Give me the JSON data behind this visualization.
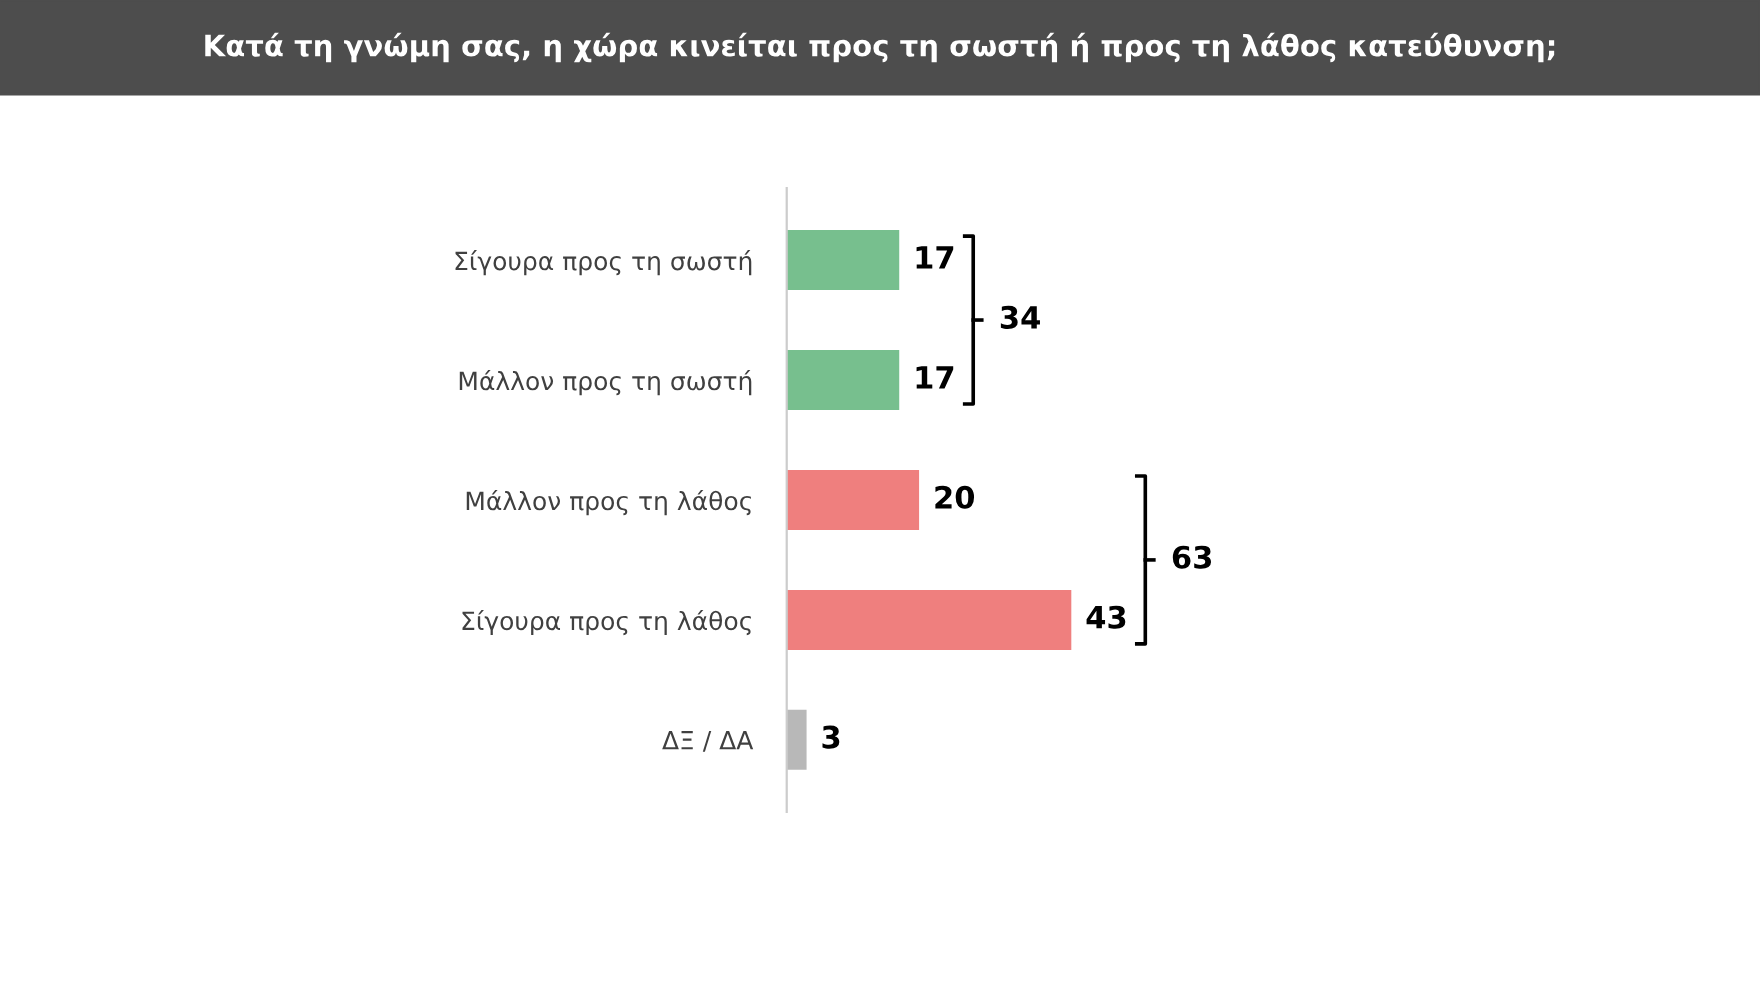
{
  "chart_data": {
    "type": "bar",
    "orientation": "horizontal",
    "title": "Κατά τη γνώμη σας, η χώρα κινείται προς τη σωστή ή προς τη λάθος κατεύθυνση;",
    "categories": [
      "Σίγουρα προς τη σωστή",
      "Μάλλον προς τη σωστή",
      "Μάλλον προς τη λάθος",
      "Σίγουρα προς τη λάθος",
      "ΔΞ / ΔΑ"
    ],
    "values": [
      17,
      17,
      20,
      43,
      3
    ],
    "colors": [
      "#77bf8e",
      "#77bf8e",
      "#ef7f7e",
      "#ef7f7e",
      "#b8b8b8"
    ],
    "data_labels": true,
    "annotations": [
      "34",
      "63"
    ]
  }
}
